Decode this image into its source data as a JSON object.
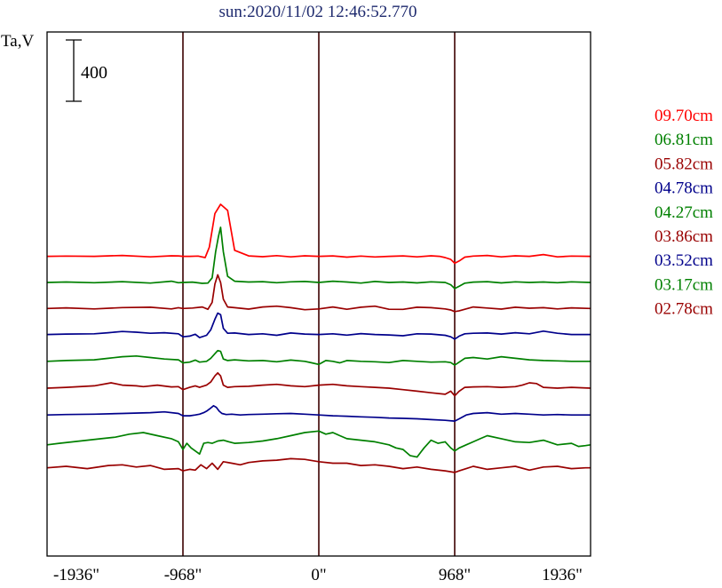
{
  "chart_data": {
    "type": "line",
    "title": "sun:2020/11/02 12:46:52.770",
    "ylabel": "Ta,V",
    "scale_bar_label": "400",
    "xlim": [
      -1936,
      1936
    ],
    "vlines": [
      -968,
      0,
      968
    ],
    "x_ticks": [
      {
        "value": -1936,
        "label": "-1936\""
      },
      {
        "value": -968,
        "label": "-968\""
      },
      {
        "value": 0,
        "label": "0\""
      },
      {
        "value": 968,
        "label": "968\""
      },
      {
        "value": 1936,
        "label": "1936\""
      }
    ],
    "colors": {
      "frame": "#000000",
      "vline": "#3c0000",
      "title": "#1e2a6e"
    },
    "series": [
      {
        "name": "09.70cm",
        "color": "#ff0000",
        "offset": 860,
        "x": [
          -1936,
          -1800,
          -1600,
          -1400,
          -1200,
          -1050,
          -1000,
          -968,
          -920,
          -860,
          -810,
          -780,
          -740,
          -700,
          -650,
          -600,
          -500,
          -400,
          -300,
          -200,
          -100,
          0,
          100,
          200,
          300,
          400,
          500,
          600,
          700,
          800,
          860,
          900,
          940,
          968,
          1000,
          1040,
          1100,
          1200,
          1300,
          1400,
          1500,
          1600,
          1700,
          1800,
          1936
        ],
        "y": [
          0,
          2,
          0,
          6,
          -3,
          4,
          3,
          0,
          0,
          2,
          -8,
          60,
          280,
          340,
          300,
          40,
          3,
          -2,
          5,
          -3,
          4,
          0,
          3,
          -5,
          2,
          -4,
          0,
          3,
          -3,
          4,
          0,
          -8,
          -20,
          -45,
          -30,
          -5,
          2,
          6,
          -3,
          4,
          0,
          12,
          -3,
          2,
          0
        ]
      },
      {
        "name": "06.81cm",
        "color": "#008000",
        "offset": 690,
        "x": [
          -1936,
          -1800,
          -1600,
          -1400,
          -1200,
          -1050,
          -1000,
          -968,
          -900,
          -830,
          -790,
          -760,
          -735,
          -715,
          -700,
          -680,
          -650,
          -600,
          -500,
          -400,
          -300,
          -200,
          -100,
          0,
          100,
          200,
          300,
          400,
          500,
          600,
          700,
          800,
          900,
          940,
          968,
          1000,
          1040,
          1100,
          1200,
          1300,
          1400,
          1500,
          1600,
          1700,
          1800,
          1936
        ],
        "y": [
          0,
          3,
          -2,
          5,
          -4,
          8,
          -2,
          0,
          2,
          -6,
          -4,
          30,
          200,
          300,
          360,
          200,
          40,
          8,
          3,
          5,
          -2,
          4,
          6,
          0,
          8,
          3,
          -4,
          6,
          0,
          3,
          -3,
          4,
          0,
          -15,
          -40,
          -25,
          -5,
          2,
          5,
          -3,
          4,
          0,
          3,
          -2,
          4,
          0
        ]
      },
      {
        "name": "05.82cm",
        "color": "#990000",
        "offset": 520,
        "x": [
          -1936,
          -1800,
          -1600,
          -1400,
          -1200,
          -1050,
          -1000,
          -968,
          -900,
          -830,
          -790,
          -760,
          -740,
          -720,
          -700,
          -680,
          -650,
          -600,
          -500,
          -400,
          -300,
          -200,
          -100,
          0,
          100,
          200,
          300,
          400,
          500,
          600,
          700,
          800,
          900,
          940,
          968,
          1000,
          1040,
          1100,
          1200,
          1300,
          1400,
          1500,
          1600,
          1700,
          1800,
          1936
        ],
        "y": [
          0,
          4,
          -3,
          6,
          8,
          -3,
          5,
          0,
          3,
          10,
          -5,
          40,
          160,
          220,
          170,
          60,
          10,
          5,
          -4,
          10,
          15,
          5,
          -8,
          -3,
          10,
          -5,
          8,
          15,
          -5,
          -6,
          8,
          5,
          -3,
          -10,
          -20,
          -15,
          -5,
          10,
          3,
          -4,
          8,
          2,
          5,
          -3,
          4,
          0
        ]
      },
      {
        "name": "04.78cm",
        "color": "#00008b",
        "offset": 350,
        "x": [
          -1936,
          -1800,
          -1600,
          -1500,
          -1400,
          -1300,
          -1200,
          -1100,
          -1000,
          -968,
          -920,
          -880,
          -850,
          -800,
          -770,
          -740,
          -720,
          -700,
          -680,
          -650,
          -600,
          -500,
          -400,
          -300,
          -200,
          -100,
          0,
          100,
          200,
          300,
          400,
          500,
          600,
          700,
          800,
          900,
          940,
          968,
          1000,
          1040,
          1100,
          1200,
          1300,
          1400,
          1500,
          1600,
          1700,
          1800,
          1936
        ],
        "y": [
          0,
          3,
          5,
          12,
          20,
          15,
          8,
          12,
          5,
          -15,
          -10,
          2,
          -20,
          -5,
          30,
          100,
          140,
          130,
          40,
          8,
          10,
          0,
          5,
          -5,
          10,
          3,
          0,
          5,
          -4,
          6,
          0,
          -3,
          -8,
          5,
          3,
          -5,
          -15,
          -30,
          -10,
          5,
          8,
          10,
          3,
          12,
          5,
          22,
          8,
          0,
          0
        ]
      },
      {
        "name": "04.27cm",
        "color": "#008000",
        "offset": 175,
        "x": [
          -1936,
          -1800,
          -1600,
          -1500,
          -1400,
          -1300,
          -1200,
          -1100,
          -1000,
          -968,
          -920,
          -880,
          -850,
          -800,
          -770,
          -740,
          -720,
          -700,
          -680,
          -650,
          -600,
          -500,
          -400,
          -300,
          -200,
          -100,
          -50,
          0,
          50,
          100,
          150,
          200,
          300,
          400,
          500,
          600,
          700,
          800,
          900,
          940,
          968,
          1000,
          1040,
          1100,
          1200,
          1300,
          1400,
          1500,
          1600,
          1700,
          1800,
          1936
        ],
        "y": [
          0,
          5,
          10,
          20,
          30,
          35,
          25,
          15,
          10,
          -10,
          -5,
          8,
          -5,
          0,
          20,
          50,
          70,
          65,
          15,
          5,
          10,
          3,
          5,
          -3,
          8,
          0,
          -10,
          -20,
          5,
          0,
          -10,
          5,
          0,
          -3,
          -8,
          5,
          0,
          -5,
          -3,
          -8,
          -25,
          -5,
          20,
          25,
          15,
          30,
          20,
          10,
          5,
          3,
          0,
          0
        ]
      },
      {
        "name": "03.86cm",
        "color": "#990000",
        "offset": 0,
        "x": [
          -1936,
          -1800,
          -1600,
          -1480,
          -1400,
          -1300,
          -1250,
          -1150,
          -1050,
          -1000,
          -968,
          -920,
          -880,
          -850,
          -800,
          -770,
          -740,
          -720,
          -700,
          -680,
          -650,
          -600,
          -500,
          -400,
          -300,
          -200,
          -100,
          0,
          100,
          200,
          300,
          400,
          500,
          600,
          700,
          800,
          900,
          940,
          968,
          1000,
          1040,
          1100,
          1200,
          1300,
          1400,
          1450,
          1500,
          1550,
          1600,
          1700,
          1800,
          1936
        ],
        "y": [
          0,
          5,
          15,
          35,
          20,
          15,
          10,
          20,
          8,
          10,
          -10,
          5,
          15,
          5,
          20,
          40,
          80,
          100,
          80,
          20,
          5,
          10,
          12,
          20,
          25,
          15,
          10,
          20,
          25,
          15,
          10,
          5,
          0,
          -10,
          -20,
          -30,
          -40,
          -20,
          -50,
          -20,
          5,
          8,
          10,
          5,
          10,
          20,
          35,
          30,
          5,
          0,
          5,
          0
        ]
      },
      {
        "name": "03.52cm",
        "color": "#00008b",
        "offset": -175,
        "x": [
          -1936,
          -1800,
          -1600,
          -1400,
          -1200,
          -1100,
          -1000,
          -968,
          -920,
          -880,
          -850,
          -820,
          -800,
          -770,
          -750,
          -730,
          -710,
          -690,
          -660,
          -620,
          -560,
          -500,
          -400,
          -300,
          -200,
          -100,
          0,
          100,
          200,
          300,
          400,
          500,
          600,
          700,
          800,
          900,
          968,
          1000,
          1050,
          1100,
          1200,
          1300,
          1400,
          1500,
          1600,
          1700,
          1800,
          1936
        ],
        "y": [
          0,
          3,
          5,
          10,
          15,
          20,
          10,
          -5,
          -5,
          0,
          5,
          15,
          25,
          45,
          60,
          50,
          25,
          10,
          3,
          5,
          0,
          3,
          5,
          8,
          10,
          5,
          0,
          -5,
          -8,
          -12,
          -15,
          -20,
          -22,
          -25,
          -30,
          -35,
          -40,
          -25,
          0,
          10,
          15,
          5,
          10,
          5,
          0,
          3,
          0,
          0
        ]
      },
      {
        "name": "03.17cm",
        "color": "#008000",
        "offset": -370,
        "x": [
          -1936,
          -1850,
          -1750,
          -1650,
          -1550,
          -1450,
          -1350,
          -1250,
          -1150,
          -1050,
          -1000,
          -968,
          -940,
          -910,
          -880,
          -850,
          -820,
          -790,
          -760,
          -720,
          -680,
          -640,
          -600,
          -500,
          -400,
          -300,
          -200,
          -100,
          0,
          50,
          100,
          150,
          200,
          300,
          400,
          500,
          550,
          600,
          650,
          700,
          750,
          800,
          850,
          900,
          940,
          968,
          1000,
          1050,
          1100,
          1150,
          1200,
          1300,
          1400,
          1500,
          1600,
          1700,
          1800,
          1850,
          1900,
          1936
        ],
        "y": [
          0,
          10,
          20,
          30,
          40,
          50,
          70,
          80,
          60,
          40,
          20,
          -30,
          10,
          -20,
          -40,
          -60,
          10,
          15,
          10,
          25,
          30,
          20,
          10,
          15,
          25,
          40,
          60,
          80,
          90,
          70,
          80,
          60,
          40,
          30,
          20,
          0,
          -20,
          -30,
          -70,
          -80,
          -20,
          30,
          10,
          20,
          -20,
          -40,
          -20,
          0,
          20,
          40,
          60,
          40,
          20,
          15,
          30,
          0,
          10,
          -10,
          -5,
          0
        ]
      },
      {
        "name": "02.78cm",
        "color": "#990000",
        "offset": -520,
        "x": [
          -1936,
          -1800,
          -1650,
          -1500,
          -1400,
          -1300,
          -1200,
          -1100,
          -1000,
          -968,
          -920,
          -880,
          -840,
          -800,
          -760,
          -720,
          -680,
          -620,
          -560,
          -500,
          -400,
          -300,
          -200,
          -100,
          0,
          100,
          200,
          300,
          400,
          500,
          600,
          700,
          800,
          900,
          968,
          1000,
          1050,
          1100,
          1200,
          1300,
          1400,
          1500,
          1600,
          1700,
          1800,
          1900,
          1936
        ],
        "y": [
          0,
          10,
          -5,
          15,
          20,
          5,
          15,
          -10,
          -5,
          -20,
          -10,
          -15,
          20,
          -5,
          30,
          -10,
          40,
          30,
          20,
          35,
          45,
          50,
          60,
          55,
          40,
          30,
          30,
          15,
          20,
          10,
          -5,
          5,
          -10,
          -20,
          -30,
          -20,
          -5,
          10,
          -10,
          0,
          10,
          -15,
          5,
          10,
          -5,
          0,
          0
        ]
      }
    ],
    "yscale": "400 per 69 px",
    "grid": false,
    "legend": "right"
  }
}
